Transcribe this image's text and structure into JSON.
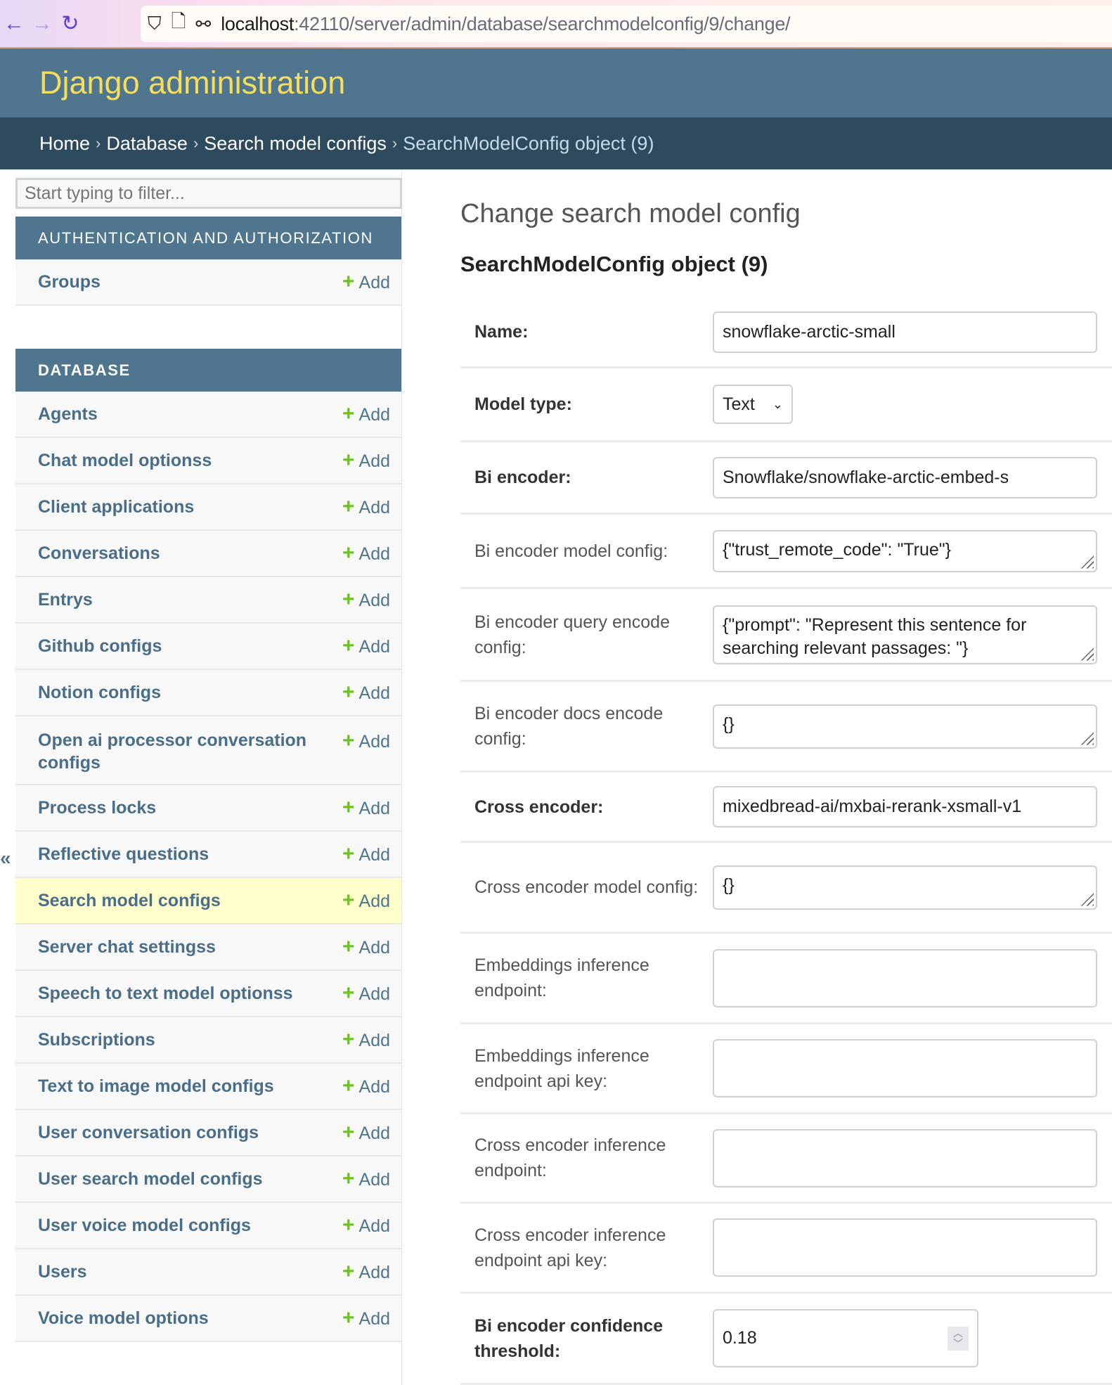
{
  "browser": {
    "url_host": "localhost",
    "url_path": ":42110/server/admin/database/searchmodelconfig/9/change/"
  },
  "header": {
    "title": "Django administration"
  },
  "breadcrumbs": [
    "Home",
    "Database",
    "Search model configs",
    "SearchModelConfig object (9)"
  ],
  "sidebar": {
    "filter_placeholder": "Start typing to filter...",
    "add_label": "Add",
    "toggle": "«",
    "auth_caption": "AUTHENTICATION AND AUTHORIZATION",
    "auth_items": [
      "Groups"
    ],
    "db_caption": "DATABASE",
    "db_items": [
      "Agents",
      "Chat model optionss",
      "Client applications",
      "Conversations",
      "Entrys",
      "Github configs",
      "Notion configs",
      "Open ai processor conversation configs",
      "Process locks",
      "Reflective questions",
      "Search model configs",
      "Server chat settingss",
      "Speech to text model optionss",
      "Subscriptions",
      "Text to image model configs",
      "User conversation configs",
      "User search model configs",
      "User voice model configs",
      "Users",
      "Voice model options"
    ],
    "selected": "Search model configs"
  },
  "main": {
    "title": "Change search model config",
    "object_name": "SearchModelConfig object (9)",
    "fields": [
      {
        "label": "Name:",
        "value": "snowflake-arctic-small"
      },
      {
        "label": "Model type:",
        "value": "Text"
      },
      {
        "label": "Bi encoder:",
        "value": "Snowflake/snowflake-arctic-embed-s"
      },
      {
        "label": "Bi encoder model config:",
        "value": "{\"trust_remote_code\": \"True\"}"
      },
      {
        "label": "Bi encoder query encode config:",
        "value": "{\"prompt\": \"Represent this sentence for searching relevant passages: \"}"
      },
      {
        "label": "Bi encoder docs encode config:",
        "value": "{}"
      },
      {
        "label": "Cross encoder:",
        "value": "mixedbread-ai/mxbai-rerank-xsmall-v1"
      },
      {
        "label": "Cross encoder model config:",
        "value": "{}"
      },
      {
        "label": "Embeddings inference endpoint:",
        "value": ""
      },
      {
        "label": "Embeddings inference endpoint api key:",
        "value": ""
      },
      {
        "label": "Cross encoder inference endpoint:",
        "value": ""
      },
      {
        "label": "Cross encoder inference endpoint api key:",
        "value": ""
      },
      {
        "label": "Bi encoder confidence threshold:",
        "value": "0.18"
      }
    ]
  }
}
